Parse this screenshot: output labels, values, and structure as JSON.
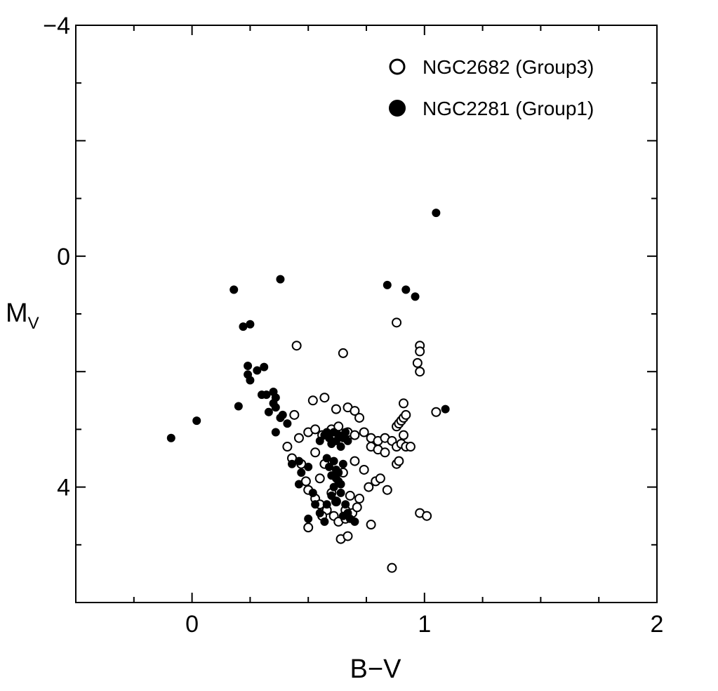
{
  "chart_data": {
    "type": "scatter",
    "title": "",
    "xlabel": "B−V",
    "ylabel": "M",
    "ylabel_subscript": "V",
    "xlim": [
      -0.5,
      2
    ],
    "ylim": [
      6,
      -4
    ],
    "y_inverted": true,
    "grid": false,
    "legend_position": "top-right",
    "x_ticks_major": [
      0,
      1,
      2
    ],
    "x_tick_labels": [
      "0",
      "1",
      "2"
    ],
    "y_ticks_major": [
      -4,
      0,
      4
    ],
    "y_tick_labels": [
      "−4",
      "0",
      "4"
    ],
    "series": [
      {
        "name": "NGC2682 (Group3)",
        "marker": "open-circle",
        "color": "#000000",
        "points": [
          [
            0.45,
            1.55
          ],
          [
            0.65,
            1.68
          ],
          [
            0.88,
            1.15
          ],
          [
            0.98,
            1.55
          ],
          [
            0.98,
            1.65
          ],
          [
            0.97,
            1.85
          ],
          [
            0.98,
            2.0
          ],
          [
            0.52,
            2.5
          ],
          [
            0.57,
            2.45
          ],
          [
            0.62,
            2.65
          ],
          [
            0.67,
            2.62
          ],
          [
            0.7,
            2.68
          ],
          [
            0.72,
            2.8
          ],
          [
            0.44,
            2.75
          ],
          [
            0.46,
            3.15
          ],
          [
            0.5,
            3.05
          ],
          [
            0.53,
            3.0
          ],
          [
            0.56,
            3.1
          ],
          [
            0.6,
            3.0
          ],
          [
            0.63,
            2.95
          ],
          [
            0.67,
            3.05
          ],
          [
            0.7,
            3.1
          ],
          [
            0.74,
            3.05
          ],
          [
            0.77,
            3.15
          ],
          [
            0.8,
            3.2
          ],
          [
            0.83,
            3.15
          ],
          [
            0.86,
            3.2
          ],
          [
            0.77,
            3.3
          ],
          [
            0.8,
            3.35
          ],
          [
            0.83,
            3.4
          ],
          [
            0.88,
            3.3
          ],
          [
            0.9,
            3.25
          ],
          [
            0.92,
            3.3
          ],
          [
            0.94,
            3.3
          ],
          [
            0.88,
            2.95
          ],
          [
            0.89,
            2.9
          ],
          [
            0.9,
            2.85
          ],
          [
            0.91,
            2.8
          ],
          [
            0.92,
            2.75
          ],
          [
            0.91,
            2.55
          ],
          [
            0.91,
            3.1
          ],
          [
            1.05,
            2.7
          ],
          [
            0.41,
            3.3
          ],
          [
            0.43,
            3.5
          ],
          [
            0.47,
            3.6
          ],
          [
            0.49,
            3.9
          ],
          [
            0.5,
            4.05
          ],
          [
            0.53,
            4.2
          ],
          [
            0.55,
            4.3
          ],
          [
            0.58,
            4.4
          ],
          [
            0.61,
            4.5
          ],
          [
            0.63,
            4.6
          ],
          [
            0.66,
            4.55
          ],
          [
            0.69,
            4.45
          ],
          [
            0.71,
            4.35
          ],
          [
            0.72,
            4.2
          ],
          [
            0.74,
            3.7
          ],
          [
            0.76,
            4.0
          ],
          [
            0.79,
            3.9
          ],
          [
            0.81,
            3.85
          ],
          [
            0.84,
            4.05
          ],
          [
            0.88,
            3.6
          ],
          [
            0.89,
            3.55
          ],
          [
            0.5,
            4.7
          ],
          [
            0.56,
            4.5
          ],
          [
            0.64,
            4.9
          ],
          [
            0.67,
            4.85
          ],
          [
            0.77,
            4.65
          ],
          [
            0.98,
            4.45
          ],
          [
            1.01,
            4.5
          ],
          [
            0.86,
            5.4
          ],
          [
            0.55,
            3.85
          ],
          [
            0.6,
            4.1
          ],
          [
            0.65,
            3.75
          ],
          [
            0.68,
            4.15
          ],
          [
            0.7,
            3.55
          ],
          [
            0.53,
            3.4
          ],
          [
            0.57,
            3.6
          ],
          [
            0.62,
            4.25
          ],
          [
            0.66,
            4.4
          ]
        ]
      },
      {
        "name": "NGC2281 (Group1)",
        "marker": "filled-circle",
        "color": "#000000",
        "points": [
          [
            1.05,
            -0.75
          ],
          [
            0.18,
            0.58
          ],
          [
            0.38,
            0.4
          ],
          [
            0.84,
            0.5
          ],
          [
            0.92,
            0.58
          ],
          [
            0.96,
            0.7
          ],
          [
            0.22,
            1.22
          ],
          [
            0.25,
            1.18
          ],
          [
            0.24,
            1.9
          ],
          [
            0.24,
            2.05
          ],
          [
            0.25,
            2.15
          ],
          [
            0.28,
            1.98
          ],
          [
            0.31,
            1.92
          ],
          [
            0.3,
            2.4
          ],
          [
            0.32,
            2.4
          ],
          [
            0.35,
            2.35
          ],
          [
            0.36,
            2.45
          ],
          [
            0.35,
            2.55
          ],
          [
            0.36,
            2.62
          ],
          [
            0.33,
            2.7
          ],
          [
            0.38,
            2.8
          ],
          [
            0.39,
            2.75
          ],
          [
            0.41,
            2.9
          ],
          [
            0.36,
            3.05
          ],
          [
            0.2,
            2.6
          ],
          [
            0.02,
            2.85
          ],
          [
            -0.09,
            3.15
          ],
          [
            1.09,
            2.65
          ],
          [
            0.43,
            3.6
          ],
          [
            0.46,
            3.55
          ],
          [
            0.47,
            3.75
          ],
          [
            0.46,
            3.95
          ],
          [
            0.5,
            3.65
          ],
          [
            0.52,
            4.1
          ],
          [
            0.53,
            4.3
          ],
          [
            0.55,
            4.45
          ],
          [
            0.5,
            4.55
          ],
          [
            0.55,
            3.2
          ],
          [
            0.57,
            3.1
          ],
          [
            0.58,
            3.05
          ],
          [
            0.59,
            3.15
          ],
          [
            0.6,
            3.25
          ],
          [
            0.61,
            3.05
          ],
          [
            0.62,
            3.2
          ],
          [
            0.63,
            3.1
          ],
          [
            0.64,
            3.3
          ],
          [
            0.65,
            3.15
          ],
          [
            0.66,
            3.05
          ],
          [
            0.67,
            3.2
          ],
          [
            0.58,
            3.5
          ],
          [
            0.59,
            3.65
          ],
          [
            0.6,
            3.8
          ],
          [
            0.61,
            3.55
          ],
          [
            0.62,
            3.7
          ],
          [
            0.63,
            3.9
          ],
          [
            0.61,
            4.0
          ],
          [
            0.62,
            3.85
          ],
          [
            0.63,
            3.75
          ],
          [
            0.64,
            3.95
          ],
          [
            0.65,
            3.6
          ],
          [
            0.6,
            4.15
          ],
          [
            0.62,
            4.25
          ],
          [
            0.64,
            4.1
          ],
          [
            0.66,
            4.3
          ],
          [
            0.67,
            4.45
          ],
          [
            0.68,
            4.55
          ],
          [
            0.7,
            4.6
          ],
          [
            0.65,
            4.5
          ],
          [
            0.58,
            4.3
          ],
          [
            0.57,
            4.6
          ]
        ]
      }
    ]
  }
}
